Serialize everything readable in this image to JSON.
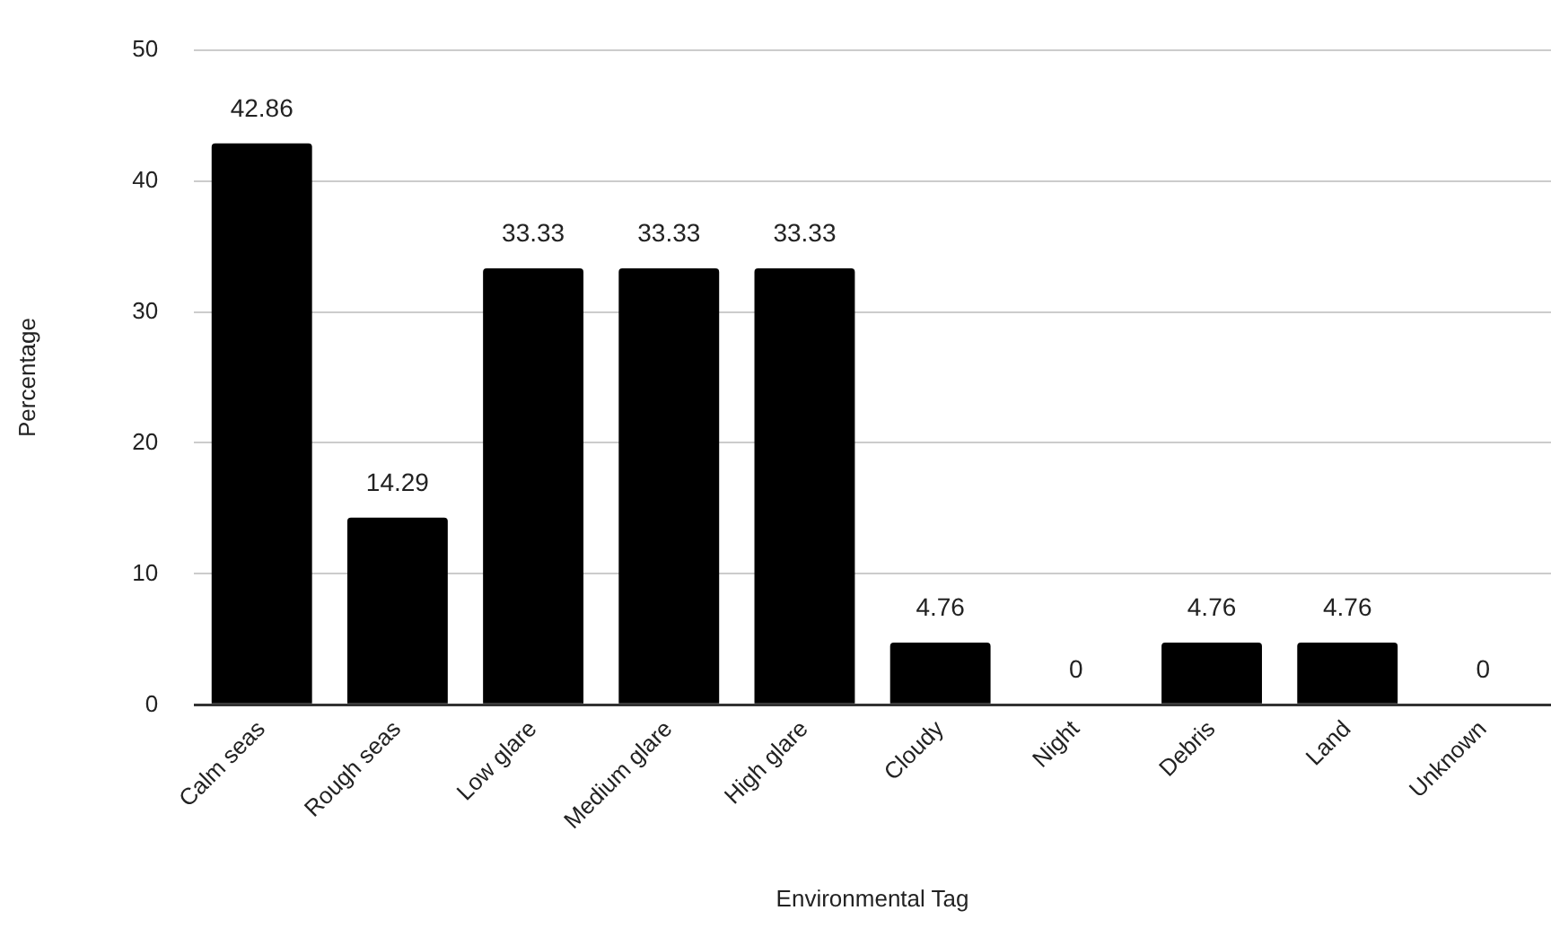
{
  "chart_data": {
    "type": "bar",
    "xlabel": "Environmental Tag",
    "ylabel": "Percentage",
    "categories": [
      "Calm seas",
      "Rough seas",
      "Low glare",
      "Medium glare",
      "High glare",
      "Cloudy",
      "Night",
      "Debris",
      "Land",
      "Unknown"
    ],
    "values": [
      42.86,
      14.29,
      33.33,
      33.33,
      33.33,
      4.76,
      0,
      4.76,
      4.76,
      0
    ],
    "color": "#000000",
    "ylim": [
      0,
      50
    ],
    "yticks": [
      0,
      10,
      20,
      30,
      40,
      50
    ],
    "grid": "y",
    "legend": false,
    "data_labels": true
  }
}
